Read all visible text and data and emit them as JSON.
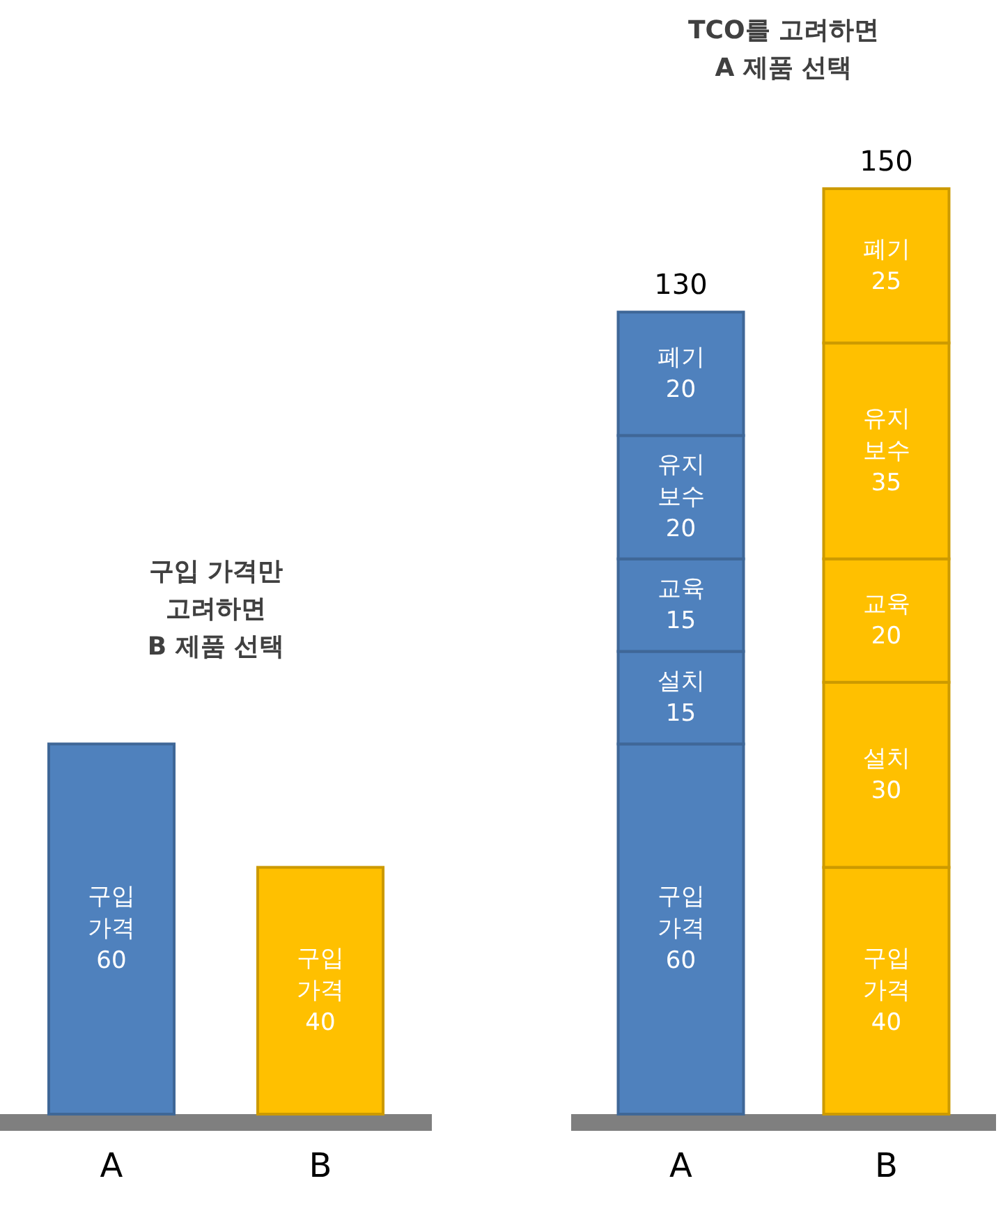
{
  "chart_data": [
    {
      "type": "bar",
      "title": "구입 가격만\n고려하면\nB 제품 선택",
      "categories": [
        "A",
        "B"
      ],
      "tick_labels": "x",
      "data_labels": true,
      "stacked": true,
      "series": [
        {
          "name": "구입 가격",
          "values": [
            60,
            40
          ],
          "colors": [
            "#4f81bd",
            "#ffc000"
          ]
        }
      ]
    },
    {
      "type": "bar",
      "title": "TCO를 고려하면\nA 제품 선택",
      "categories": [
        "A",
        "B"
      ],
      "tick_labels": "x",
      "data_labels": true,
      "stacked": true,
      "totals": [
        "130",
        "150"
      ],
      "series": [
        {
          "name": "구입 가격",
          "values": [
            60,
            40
          ],
          "colors": [
            "#4f81bd",
            "#ffc000"
          ]
        },
        {
          "name": "설치",
          "values": [
            15,
            30
          ],
          "colors": [
            "#4f81bd",
            "#ffc000"
          ]
        },
        {
          "name": "교육",
          "values": [
            15,
            20
          ],
          "colors": [
            "#4f81bd",
            "#ffc000"
          ]
        },
        {
          "name": "유지 보수",
          "values": [
            20,
            35
          ],
          "colors": [
            "#4f81bd",
            "#ffc000"
          ]
        },
        {
          "name": "폐기",
          "values": [
            20,
            25
          ],
          "colors": [
            "#4f81bd",
            "#ffc000"
          ]
        }
      ]
    }
  ]
}
